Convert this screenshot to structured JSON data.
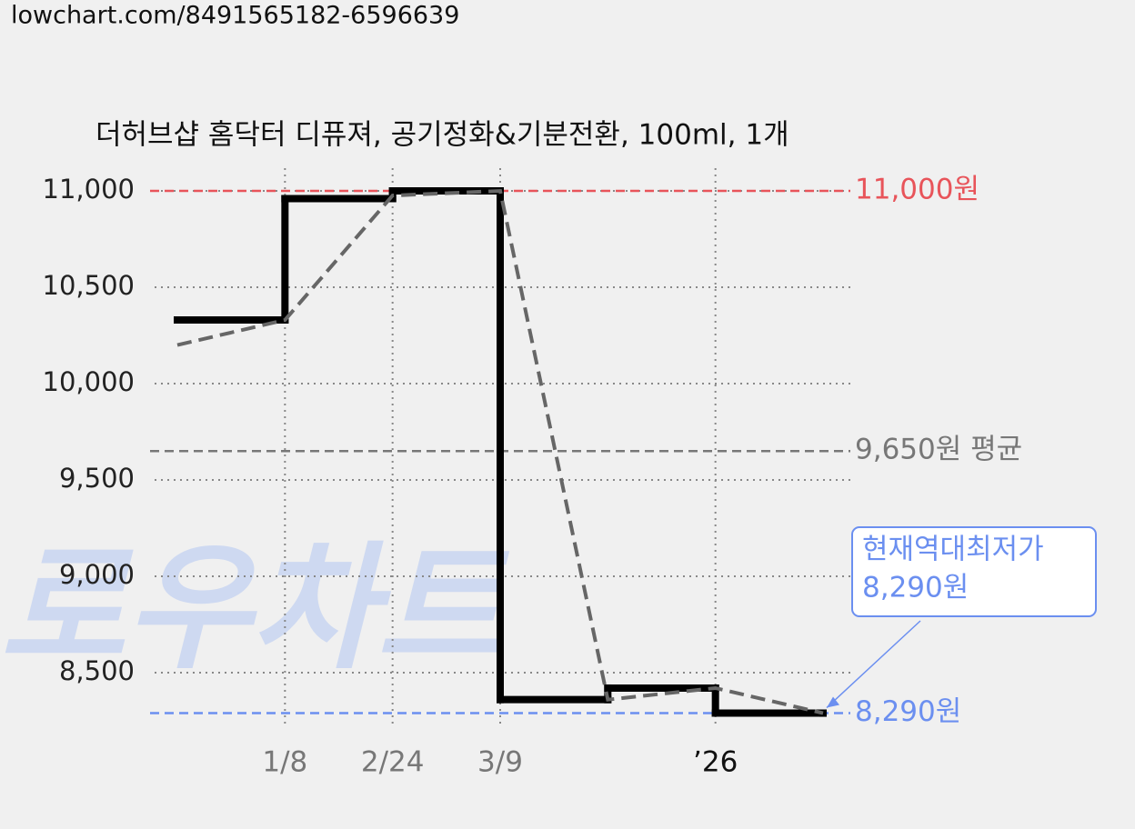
{
  "url": "lowchart.com/8491565182-6596639",
  "chart_data": {
    "type": "line",
    "title": "더허브샵 홈닥터 디퓨져, 공기정화&기분전환, 100ml, 1개",
    "watermark": "로우차트",
    "categories": [
      null,
      "1/8",
      "2/24",
      "3/9",
      null,
      "’26",
      null
    ],
    "x_label_colors": [
      null,
      "#777777",
      "#777777",
      "#777777",
      null,
      "#111111",
      null
    ],
    "series": [
      {
        "style": "step",
        "color": "#000000",
        "values": [
          10330,
          10960,
          11000,
          8360,
          8420,
          8290,
          8290
        ]
      },
      {
        "style": "dashed",
        "color": "#666666",
        "values": [
          10200,
          10330,
          10976,
          11000,
          8360,
          8420,
          8290
        ]
      }
    ],
    "ylim": [
      8217,
      11118
    ],
    "yticks": [
      {
        "value": 8500,
        "label": "8,500"
      },
      {
        "value": 9000,
        "label": "9,000"
      },
      {
        "value": 9500,
        "label": "9,500"
      },
      {
        "value": 10000,
        "label": "10,000"
      },
      {
        "value": 10500,
        "label": "10,500"
      },
      {
        "value": 11000,
        "label": "11,000"
      }
    ],
    "grid": true,
    "reference_lines": [
      {
        "value": 11000,
        "label": "11,000원",
        "color": "#e8545a"
      },
      {
        "value": 9650,
        "label": "9,650원 평균",
        "color": "#777777"
      },
      {
        "value": 8290,
        "label": "8,290원",
        "color": "#6b8ff0"
      }
    ],
    "annotation": {
      "lines": [
        "현재역대최저가",
        "8,290원"
      ],
      "color": "#6b8ff0"
    }
  }
}
